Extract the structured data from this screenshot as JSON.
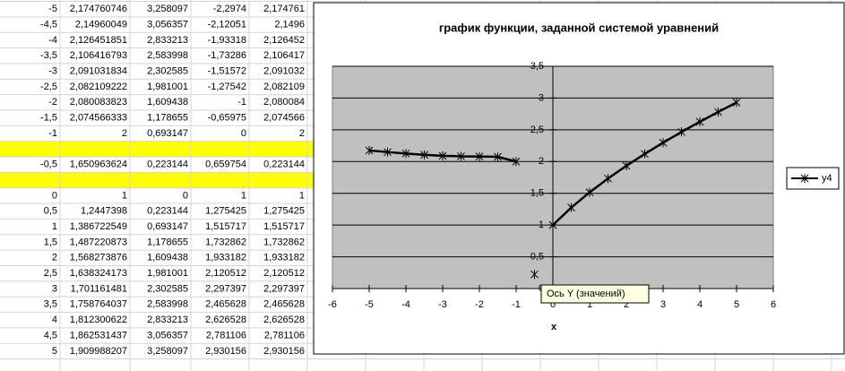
{
  "table": {
    "rows": [
      [
        "-5",
        "2,174760746",
        "3,258097",
        "-2,2974",
        "2,174761"
      ],
      [
        "-4,5",
        "2,14960049",
        "3,056357",
        "-2,12051",
        "2,1496"
      ],
      [
        "-4",
        "2,126451851",
        "2,833213",
        "-1,93318",
        "2,126452"
      ],
      [
        "-3,5",
        "2,106416793",
        "2,583998",
        "-1,73286",
        "2,106417"
      ],
      [
        "-3",
        "2,091031834",
        "2,302585",
        "-1,51572",
        "2,091032"
      ],
      [
        "-2,5",
        "2,082109222",
        "1,981001",
        "-1,27542",
        "2,082109"
      ],
      [
        "-2",
        "2,080083823",
        "1,609438",
        "-1",
        "2,080084"
      ],
      [
        "-1,5",
        "2,074566333",
        "1,178655",
        "-0,65975",
        "2,074566"
      ],
      [
        "-1",
        "2",
        "0,693147",
        "0",
        "2"
      ],
      [
        "-0,5",
        "1,650963624",
        "0,223144",
        "0,659754",
        "0,223144"
      ],
      [
        "0",
        "1",
        "0",
        "1",
        "1"
      ],
      [
        "0,5",
        "1,2447398",
        "0,223144",
        "1,275425",
        "1,275425"
      ],
      [
        "1",
        "1,386722549",
        "0,693147",
        "1,515717",
        "1,515717"
      ],
      [
        "1,5",
        "1,487220873",
        "1,178655",
        "1,732862",
        "1,732862"
      ],
      [
        "2",
        "1,568273876",
        "1,609438",
        "1,933182",
        "1,933182"
      ],
      [
        "2,5",
        "1,638324173",
        "1,981001",
        "2,120512",
        "2,120512"
      ],
      [
        "3",
        "1,701161481",
        "2,302585",
        "2,297397",
        "2,297397"
      ],
      [
        "3,5",
        "1,758764037",
        "2,583998",
        "2,465628",
        "2,465628"
      ],
      [
        "4",
        "1,812300622",
        "2,833213",
        "2,626528",
        "2,626528"
      ],
      [
        "4,5",
        "1,862531437",
        "3,056357",
        "2,781106",
        "2,781106"
      ],
      [
        "5",
        "1,909988207",
        "3,258097",
        "2,930156",
        "2,930156"
      ]
    ]
  },
  "chart_data": {
    "type": "line",
    "title": "график функции, заданной системой уравнений",
    "x_label": "x",
    "tooltip": "Ось Y (значений)",
    "legend": "right",
    "x": [
      -5,
      -4.5,
      -4,
      -3.5,
      -3,
      -2.5,
      -2,
      -1.5,
      -1,
      null,
      -0.5,
      null,
      0,
      0.5,
      1,
      1.5,
      2,
      2.5,
      3,
      3.5,
      4,
      4.5,
      5
    ],
    "series": [
      {
        "name": "y4",
        "color": "#000000",
        "values": [
          2.174761,
          2.1496,
          2.126452,
          2.106417,
          2.091032,
          2.082109,
          2.080084,
          2.074566,
          2,
          null,
          0.223144,
          null,
          1,
          1.275425,
          1.515717,
          1.732862,
          1.933182,
          2.120512,
          2.297397,
          2.465628,
          2.626528,
          2.781106,
          2.930156
        ]
      }
    ],
    "xlim": [
      -6,
      6
    ],
    "xticks": [
      -6,
      -5,
      -4,
      -3,
      -2,
      -1,
      0,
      1,
      2,
      3,
      4,
      5,
      6
    ],
    "ylim": [
      0,
      3.5
    ],
    "yticks": [
      0,
      {
        "value": 0.5,
        "label": "0,5"
      },
      1,
      {
        "value": 1.5,
        "label": "1,5"
      },
      2,
      {
        "value": 2.5,
        "label": "2,5"
      },
      3,
      {
        "value": 3.5,
        "label": "3,5"
      }
    ],
    "grid": true
  }
}
